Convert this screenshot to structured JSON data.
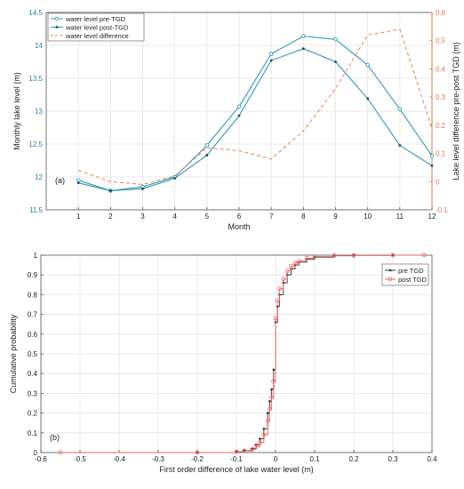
{
  "chart_data": [
    {
      "type": "line",
      "panel_label": "(a)",
      "xlabel": "Month",
      "ylabel": "Monthly lake level (m)",
      "y2label": "Lake level difference pre-post TGD (m)",
      "x": [
        1,
        2,
        3,
        4,
        5,
        6,
        7,
        8,
        9,
        10,
        11,
        12
      ],
      "xlim": [
        0,
        12
      ],
      "ylim": [
        11.5,
        14.5
      ],
      "y2lim": [
        -0.1,
        0.6
      ],
      "yticks": [
        "11.5",
        "12",
        "12.5",
        "13",
        "13.5",
        "14",
        "14.5"
      ],
      "y2ticks": [
        "-0.1",
        "0",
        "0.1",
        "0.2",
        "0.3",
        "0.4",
        "0.5",
        "0.6"
      ],
      "xticks": [
        "1",
        "2",
        "3",
        "4",
        "5",
        "6",
        "7",
        "8",
        "9",
        "10",
        "11",
        "12"
      ],
      "grid": true,
      "legend_position": "top-left",
      "series": [
        {
          "name": "water level pre-TGD",
          "axis": "left",
          "color": "#2e9ab5",
          "style": "solid",
          "marker": "circle",
          "values": [
            11.95,
            11.79,
            11.85,
            12.0,
            12.48,
            13.07,
            13.87,
            14.14,
            14.09,
            13.7,
            13.03,
            12.32
          ]
        },
        {
          "name": "water level post-TGD",
          "axis": "left",
          "color": "#2e9ab5",
          "style": "solid",
          "marker": "dot",
          "values": [
            11.91,
            11.79,
            11.82,
            11.98,
            12.33,
            12.93,
            13.77,
            13.95,
            13.75,
            13.19,
            12.48,
            12.17
          ]
        },
        {
          "name": "water level difference",
          "axis": "right",
          "color": "#e8825a",
          "style": "dashed",
          "marker": "none",
          "values": [
            0.04,
            0.0,
            -0.01,
            0.02,
            0.12,
            0.11,
            0.08,
            0.18,
            0.33,
            0.52,
            0.54,
            0.19
          ]
        }
      ]
    },
    {
      "type": "line",
      "subtype": "ecdf",
      "panel_label": "(b)",
      "xlabel": "First order difference of lake water level (m)",
      "ylabel": "Cumulative probability",
      "xlim": [
        -0.6,
        0.4
      ],
      "ylim": [
        0,
        1
      ],
      "xticks": [
        "-0.6",
        "-0.5",
        "-0.4",
        "-0.3",
        "-0.2",
        "-0.1",
        "0",
        "0.1",
        "0.2",
        "0.3",
        "0.4"
      ],
      "yticks": [
        "0",
        "0.1",
        "0.2",
        "0.3",
        "0.4",
        "0.5",
        "0.6",
        "0.7",
        "0.8",
        "0.9",
        "1"
      ],
      "grid": true,
      "legend_position": "top-right",
      "series": [
        {
          "name": "pre TGD",
          "color": "#333333",
          "marker": "dot",
          "x": [
            -0.2,
            -0.1,
            -0.08,
            -0.06,
            -0.05,
            -0.04,
            -0.03,
            -0.02,
            -0.015,
            -0.01,
            -0.005,
            0.0,
            0.005,
            0.01,
            0.02,
            0.03,
            0.04,
            0.05,
            0.06,
            0.08,
            0.1,
            0.15,
            0.2,
            0.3
          ],
          "y": [
            0.0,
            0.005,
            0.01,
            0.02,
            0.04,
            0.07,
            0.12,
            0.2,
            0.26,
            0.32,
            0.42,
            0.66,
            0.74,
            0.8,
            0.86,
            0.9,
            0.93,
            0.95,
            0.965,
            0.98,
            0.99,
            0.997,
            0.999,
            1.0
          ]
        },
        {
          "name": "post TGD",
          "color": "#e8625a",
          "marker": "circle",
          "x": [
            -0.55,
            -0.2,
            -0.1,
            -0.08,
            -0.06,
            -0.05,
            -0.04,
            -0.03,
            -0.02,
            -0.015,
            -0.01,
            -0.005,
            0.0,
            0.005,
            0.01,
            0.02,
            0.03,
            0.04,
            0.05,
            0.06,
            0.08,
            0.1,
            0.15,
            0.2,
            0.3,
            0.38
          ],
          "y": [
            0.0,
            0.0,
            0.004,
            0.008,
            0.015,
            0.03,
            0.05,
            0.09,
            0.16,
            0.22,
            0.28,
            0.36,
            0.68,
            0.77,
            0.83,
            0.88,
            0.92,
            0.945,
            0.96,
            0.97,
            0.985,
            0.993,
            0.998,
            0.999,
            1.0,
            1.0
          ]
        }
      ]
    }
  ]
}
